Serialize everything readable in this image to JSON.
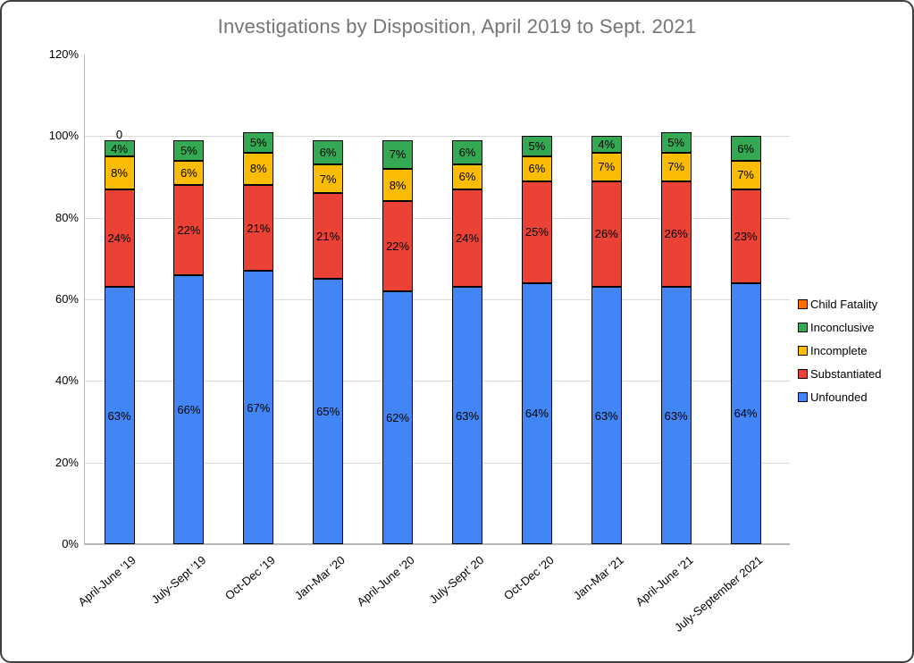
{
  "window": {
    "background": "#ffffff",
    "border_color": "#3f3f3f"
  },
  "chart_data": {
    "type": "bar",
    "stacked": true,
    "title": "Investigations by Disposition, April 2019 to Sept. 2021",
    "title_color": "#757575",
    "categories": [
      "April-June '19",
      "July-Sept '19",
      "Oct-Dec '19",
      "Jan-Mar '20",
      "April-June '20",
      "July-Sept' 20",
      "Oct-Dec '20",
      "Jan-Mar '21",
      "April-June '21",
      "July-September 2021"
    ],
    "series": [
      {
        "name": "Unfounded",
        "color": "#4285F4",
        "values": [
          63,
          66,
          67,
          65,
          62,
          63,
          64,
          63,
          63,
          64
        ],
        "labels": [
          "63%",
          "66%",
          "67%",
          "65%",
          "62%",
          "63%",
          "64%",
          "63%",
          "63%",
          "64%"
        ]
      },
      {
        "name": "Substantiated",
        "color": "#EA4335",
        "values": [
          24,
          22,
          21,
          21,
          22,
          24,
          25,
          26,
          26,
          23
        ],
        "labels": [
          "24%",
          "22%",
          "21%",
          "21%",
          "22%",
          "24%",
          "25%",
          "26%",
          "26%",
          "23%"
        ]
      },
      {
        "name": "Incomplete",
        "color": "#FBBC04",
        "values": [
          8,
          6,
          8,
          7,
          8,
          6,
          6,
          7,
          7,
          7
        ],
        "labels": [
          "8%",
          "6%",
          "8%",
          "7%",
          "8%",
          "6%",
          "6%",
          "7%",
          "7%",
          "7%"
        ]
      },
      {
        "name": "Inconclusive",
        "color": "#34A853",
        "values": [
          4,
          5,
          5,
          6,
          7,
          6,
          5,
          4,
          5,
          6
        ],
        "labels": [
          "4%",
          "5%",
          "5%",
          "6%",
          "7%",
          "6%",
          "5%",
          "4%",
          "5%",
          "6%"
        ]
      },
      {
        "name": "Child Fatality",
        "color": "#FF6D01",
        "values": [
          0,
          0,
          0,
          0,
          0,
          0,
          0,
          0,
          0,
          0
        ],
        "labels": [
          "0",
          "",
          "",
          "",
          "",
          "",
          "",
          "",
          "",
          ""
        ]
      }
    ],
    "y_axis": {
      "tick_labels": [
        "0%",
        "20%",
        "40%",
        "60%",
        "80%",
        "100%",
        "120%"
      ],
      "tick_values": [
        0,
        20,
        40,
        60,
        80,
        100,
        120
      ],
      "ylim": [
        0,
        120
      ],
      "grid": true,
      "grid_color": "#d9d9d9",
      "axis_color": "#b7b7b7"
    },
    "legend": {
      "position": "right",
      "items": [
        {
          "label": "Child Fatality",
          "color": "#FF6D01"
        },
        {
          "label": "Inconclusive",
          "color": "#34A853"
        },
        {
          "label": "Incomplete",
          "color": "#FBBC04"
        },
        {
          "label": "Substantiated",
          "color": "#EA4335"
        },
        {
          "label": "Unfounded",
          "color": "#4285F4"
        }
      ]
    }
  }
}
